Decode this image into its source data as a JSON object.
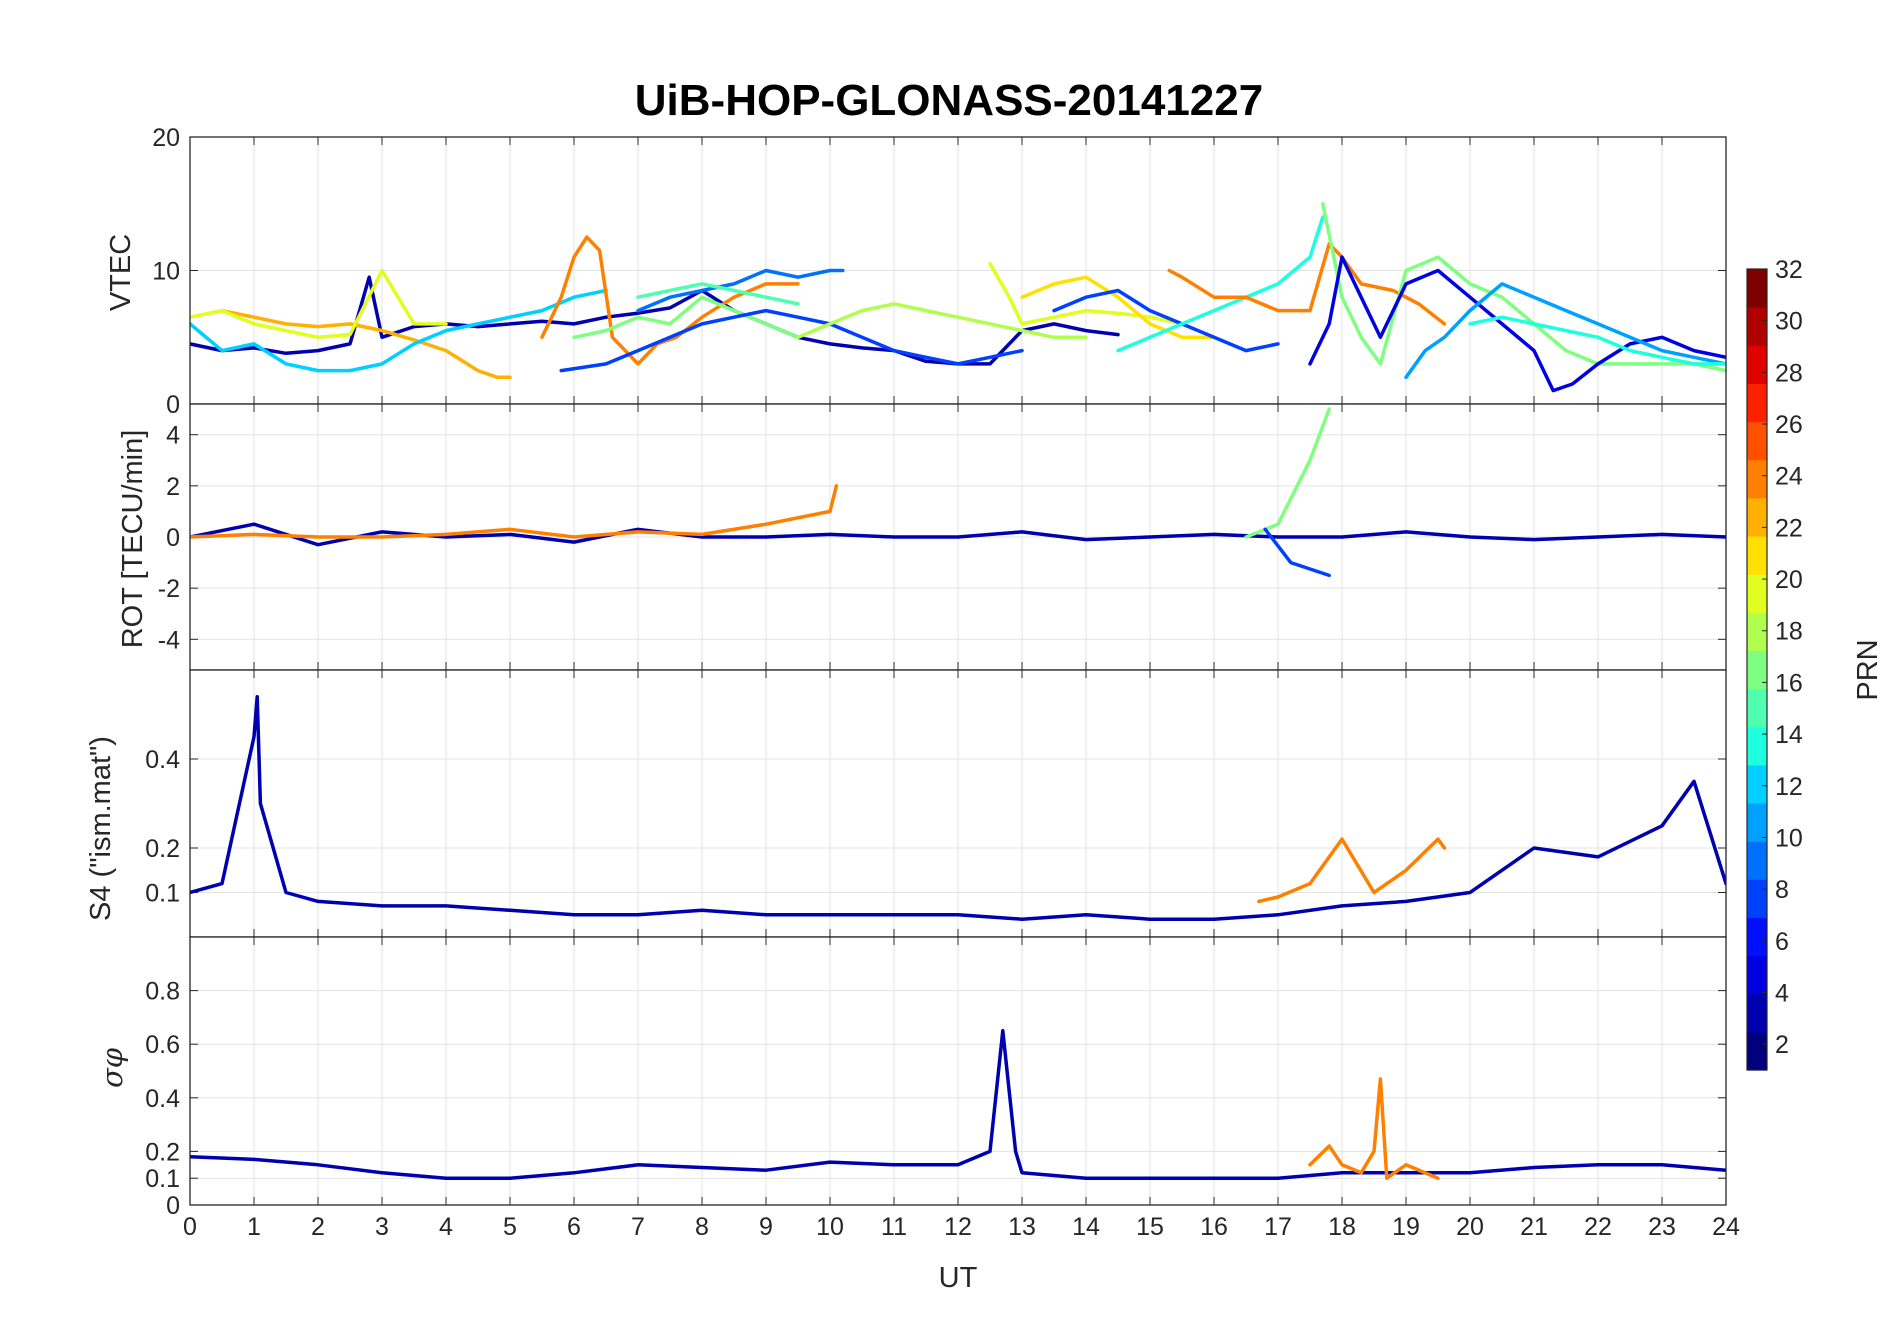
{
  "chart_data": {
    "type": "line",
    "title": "UiB-HOP-GLONASS-20141227",
    "xlabel": "UT",
    "xlim": [
      0,
      24
    ],
    "xticks": [
      "0",
      "1",
      "2",
      "3",
      "4",
      "5",
      "6",
      "7",
      "8",
      "9",
      "10",
      "11",
      "12",
      "13",
      "14",
      "15",
      "16",
      "17",
      "18",
      "19",
      "20",
      "21",
      "22",
      "23",
      "24"
    ],
    "grid": true,
    "colorbar": {
      "label": "PRN",
      "colormap": "jet",
      "range": [
        1,
        32
      ],
      "ticks": [
        "2",
        "4",
        "6",
        "8",
        "10",
        "12",
        "14",
        "16",
        "18",
        "20",
        "22",
        "24",
        "26",
        "28",
        "30",
        "32"
      ],
      "colors": [
        "#00007f",
        "#0000b0",
        "#0000e0",
        "#0010ff",
        "#0040ff",
        "#0070ff",
        "#00a0ff",
        "#00d0ff",
        "#1effe0",
        "#4effb0",
        "#7eff80",
        "#b0ff4e",
        "#e0ff1e",
        "#ffe000",
        "#ffb000",
        "#ff8000",
        "#ff5000",
        "#ff2000",
        "#e00000",
        "#b00000",
        "#800000"
      ]
    },
    "panels": [
      {
        "id": "vtec",
        "ylabel": "VTEC",
        "ylim": [
          0,
          20
        ],
        "yticks": [
          "0",
          "10",
          "20"
        ],
        "series": [
          {
            "prn": 2,
            "color": "#0000b0",
            "x": [
              0,
              0.5,
              1,
              1.5,
              2,
              2.5,
              2.8,
              3,
              3.5,
              4,
              4.5,
              5,
              5.5,
              6,
              6.5,
              7,
              7.5,
              8,
              8.5,
              9,
              9.5,
              10,
              10.5,
              11,
              11.5,
              12,
              12.5,
              13,
              13.5,
              14,
              14.5
            ],
            "y": [
              4.5,
              4,
              4.2,
              3.8,
              4,
              4.5,
              9.5,
              5,
              5.8,
              6,
              5.8,
              6,
              6.2,
              6,
              6.5,
              6.8,
              7.2,
              8.5,
              7,
              6,
              5,
              4.5,
              4.2,
              4,
              3.2,
              3,
              3,
              5.5,
              6,
              5.5,
              5.2
            ]
          },
          {
            "prn": 22,
            "color": "#ffb000",
            "x": [
              0.5,
              1,
              1.5,
              2,
              2.5,
              3,
              3.5,
              4,
              4.5,
              4.8,
              5
            ],
            "y": [
              7,
              6.5,
              6,
              5.8,
              6,
              5.5,
              4.8,
              4,
              2.5,
              2,
              2
            ]
          },
          {
            "prn": 18,
            "color": "#e0ff1e",
            "x": [
              0,
              0.5,
              1,
              1.5,
              2,
              2.5,
              3,
              3.5,
              4
            ],
            "y": [
              6.5,
              7,
              6,
              5.5,
              5,
              5.2,
              10,
              6,
              6
            ]
          },
          {
            "prn": 11,
            "color": "#00d0ff",
            "x": [
              0,
              0.5,
              1,
              1.5,
              2,
              2.5,
              3,
              3.5,
              4,
              4.5,
              5,
              5.5,
              6,
              6.5
            ],
            "y": [
              6,
              4,
              4.5,
              3,
              2.5,
              2.5,
              3,
              4.5,
              5.5,
              6,
              6.5,
              7,
              8,
              8.5
            ]
          },
          {
            "prn": 24,
            "color": "#ff8000",
            "x": [
              5.5,
              5.8,
              6,
              6.2,
              6.4,
              6.6,
              7,
              7.3,
              7.6,
              8,
              8.5,
              9,
              9.5
            ],
            "y": [
              5,
              8,
              11,
              12.5,
              11.5,
              5,
              3,
              4.5,
              5,
              6.5,
              8,
              9,
              9
            ]
          },
          {
            "prn": 16,
            "color": "#7eff80",
            "x": [
              6,
              6.5,
              7,
              7.5,
              8,
              8.5,
              9,
              9.5
            ],
            "y": [
              5,
              5.5,
              6.5,
              6,
              8,
              7,
              6,
              5
            ]
          },
          {
            "prn": 8,
            "color": "#0070ff",
            "x": [
              7,
              7.5,
              8,
              8.5,
              9,
              9.5,
              10,
              10.2
            ],
            "y": [
              7,
              8,
              8.5,
              9,
              10,
              9.5,
              10,
              10
            ]
          },
          {
            "prn": 7,
            "color": "#0040ff",
            "x": [
              5.8,
              6.5,
              7,
              7.5,
              8,
              8.5,
              9,
              9.5,
              10,
              10.5,
              11,
              11.5,
              12,
              12.5,
              13
            ],
            "y": [
              2.5,
              3,
              4,
              5,
              6,
              6.5,
              7,
              6.5,
              6,
              5,
              4,
              3.5,
              3,
              3.5,
              4
            ]
          },
          {
            "prn": 14,
            "color": "#4effb0",
            "x": [
              7,
              7.5,
              8,
              8.5,
              9,
              9.5
            ],
            "y": [
              8,
              8.5,
              9,
              8.5,
              8,
              7.5
            ]
          },
          {
            "prn": 17,
            "color": "#b0ff4e",
            "x": [
              9.5,
              10,
              10.5,
              11,
              11.5,
              12,
              12.5,
              13,
              13.5,
              14
            ],
            "y": [
              5,
              6,
              7,
              7.5,
              7,
              6.5,
              6,
              5.5,
              5,
              5
            ]
          },
          {
            "prn": 19,
            "color": "#e0ff1e",
            "x": [
              12.5,
              12.8,
              13,
              13.5,
              14,
              14.5,
              15,
              15.5
            ],
            "y": [
              10.5,
              8,
              6,
              6.5,
              7,
              6.8,
              6.5,
              6
            ]
          },
          {
            "prn": 21,
            "color": "#ffe000",
            "x": [
              13,
              13.5,
              14,
              14.5,
              15,
              15.5,
              16
            ],
            "y": [
              8,
              9,
              9.5,
              8,
              6,
              5,
              5
            ]
          },
          {
            "prn": 6,
            "color": "#0040ff",
            "x": [
              13.5,
              14,
              14.5,
              15,
              15.5,
              16,
              16.5,
              17
            ],
            "y": [
              7,
              8,
              8.5,
              7,
              6,
              5,
              4,
              4.5
            ]
          },
          {
            "prn": 12,
            "color": "#1effe0",
            "x": [
              14.5,
              15,
              15.5,
              16,
              16.5,
              17,
              17.5,
              17.7
            ],
            "y": [
              4,
              5,
              6,
              7,
              8,
              9,
              11,
              14
            ]
          },
          {
            "prn": 23,
            "color": "#ff8000",
            "x": [
              15.3,
              15.5,
              16,
              16.5,
              17,
              17.5,
              17.8,
              18,
              18.3,
              18.8,
              19.2,
              19.6
            ],
            "y": [
              10,
              9.5,
              8,
              8,
              7,
              7,
              12,
              11,
              9,
              8.5,
              7.5,
              6
            ]
          },
          {
            "prn": 17,
            "color": "#7eff80",
            "x": [
              17.7,
              18,
              18.3,
              18.6,
              19,
              19.5,
              20,
              20.5,
              21,
              21.5,
              22,
              22.5,
              23,
              23.5,
              24
            ],
            "y": [
              15,
              8,
              5,
              3,
              10,
              11,
              9,
              8,
              6,
              4,
              3,
              3,
              3,
              3,
              2.5
            ]
          },
          {
            "prn": 4,
            "color": "#0000e0",
            "x": [
              17.5,
              17.8,
              18,
              18.3,
              18.6,
              19,
              19.5,
              20,
              20.5,
              21,
              21.3,
              21.6,
              22,
              22.5,
              23,
              23.5,
              24
            ],
            "y": [
              3,
              6,
              11,
              8,
              5,
              9,
              10,
              8,
              6,
              4,
              1,
              1.5,
              3,
              4.5,
              5,
              4,
              3.5
            ]
          },
          {
            "prn": 10,
            "color": "#00a0ff",
            "x": [
              19,
              19.3,
              19.6,
              20,
              20.5,
              21,
              21.5,
              22,
              22.5,
              23,
              23.5,
              24
            ],
            "y": [
              2,
              4,
              5,
              7,
              9,
              8,
              7,
              6,
              5,
              4,
              3.5,
              3
            ]
          },
          {
            "prn": 13,
            "color": "#1effe0",
            "x": [
              20,
              20.5,
              21,
              21.5,
              22,
              22.5,
              23,
              23.5,
              24
            ],
            "y": [
              6,
              6.5,
              6,
              5.5,
              5,
              4,
              3.5,
              3,
              3
            ]
          }
        ]
      },
      {
        "id": "rot",
        "ylabel": "ROT [TECU/min]",
        "ylim": [
          -5.2,
          5.2
        ],
        "yticks": [
          "-4",
          "-2",
          "0",
          "2",
          "4"
        ],
        "series": [
          {
            "prn": 2,
            "color": "#0000b0",
            "x": [
              0,
              1,
              2,
              3,
              4,
              5,
              6,
              7,
              8,
              9,
              10,
              11,
              12,
              13,
              14,
              15,
              16,
              17,
              18,
              19,
              20,
              21,
              22,
              23,
              24
            ],
            "y": [
              0,
              0.5,
              -0.3,
              0.2,
              0,
              0.1,
              -0.2,
              0.3,
              0,
              0,
              0.1,
              0,
              0,
              0.2,
              -0.1,
              0,
              0.1,
              0,
              0,
              0.2,
              0,
              -0.1,
              0,
              0.1,
              0
            ]
          },
          {
            "prn": 24,
            "color": "#ff8000",
            "x": [
              0,
              1,
              2,
              3,
              4,
              5,
              6,
              7,
              8,
              9,
              10,
              10.1
            ],
            "y": [
              0,
              0.1,
              0,
              0,
              0.1,
              0.3,
              0,
              0.2,
              0.1,
              0.5,
              1,
              2
            ]
          },
          {
            "prn": 16,
            "color": "#7eff80",
            "x": [
              16.5,
              17,
              17.5,
              17.8
            ],
            "y": [
              0,
              0.5,
              3,
              5
            ]
          },
          {
            "prn": 6,
            "color": "#0040ff",
            "x": [
              16.8,
              17.2,
              17.8
            ],
            "y": [
              0.3,
              -1,
              -1.5
            ]
          }
        ]
      },
      {
        "id": "s4",
        "ylabel": "S4 (\"ism.mat\")",
        "ylim": [
          0,
          0.6
        ],
        "yticks": [
          "0.1",
          "0.2",
          "0.4"
        ],
        "series": [
          {
            "prn": 2,
            "color": "#0000b0",
            "x": [
              0,
              0.5,
              1,
              1.05,
              1.1,
              1.5,
              2,
              3,
              4,
              5,
              6,
              7,
              8,
              9,
              10,
              11,
              12,
              13,
              14,
              15,
              16,
              17,
              18,
              19,
              20,
              21,
              22,
              23,
              23.5,
              24
            ],
            "y": [
              0.1,
              0.12,
              0.45,
              0.54,
              0.3,
              0.1,
              0.08,
              0.07,
              0.07,
              0.06,
              0.05,
              0.05,
              0.06,
              0.05,
              0.05,
              0.05,
              0.05,
              0.04,
              0.05,
              0.04,
              0.04,
              0.05,
              0.07,
              0.08,
              0.1,
              0.2,
              0.18,
              0.25,
              0.35,
              0.12
            ]
          },
          {
            "prn": 23,
            "color": "#ff8000",
            "x": [
              16.7,
              17,
              17.5,
              18,
              18.5,
              19,
              19.5,
              19.6
            ],
            "y": [
              0.08,
              0.09,
              0.12,
              0.22,
              0.1,
              0.15,
              0.22,
              0.2
            ]
          }
        ]
      },
      {
        "id": "sigma",
        "ylabel": "σφ",
        "ylim": [
          0,
          1
        ],
        "yticks": [
          "0",
          "0.1",
          "0.2",
          "0.4",
          "0.6",
          "0.8"
        ],
        "series": [
          {
            "prn": 2,
            "color": "#0000b0",
            "x": [
              0,
              1,
              2,
              3,
              4,
              5,
              6,
              7,
              8,
              9,
              10,
              11,
              12,
              12.5,
              12.7,
              12.9,
              13,
              14,
              15,
              16,
              17,
              18,
              19,
              20,
              21,
              22,
              23,
              24
            ],
            "y": [
              0.18,
              0.17,
              0.15,
              0.12,
              0.1,
              0.1,
              0.12,
              0.15,
              0.14,
              0.13,
              0.16,
              0.15,
              0.15,
              0.2,
              0.65,
              0.2,
              0.12,
              0.1,
              0.1,
              0.1,
              0.1,
              0.12,
              0.12,
              0.12,
              0.14,
              0.15,
              0.15,
              0.13
            ]
          },
          {
            "prn": 23,
            "color": "#ff8000",
            "x": [
              17.5,
              17.8,
              18,
              18.3,
              18.5,
              18.6,
              18.7,
              19,
              19.5
            ],
            "y": [
              0.15,
              0.22,
              0.15,
              0.12,
              0.2,
              0.47,
              0.1,
              0.15,
              0.1
            ]
          }
        ]
      }
    ]
  }
}
